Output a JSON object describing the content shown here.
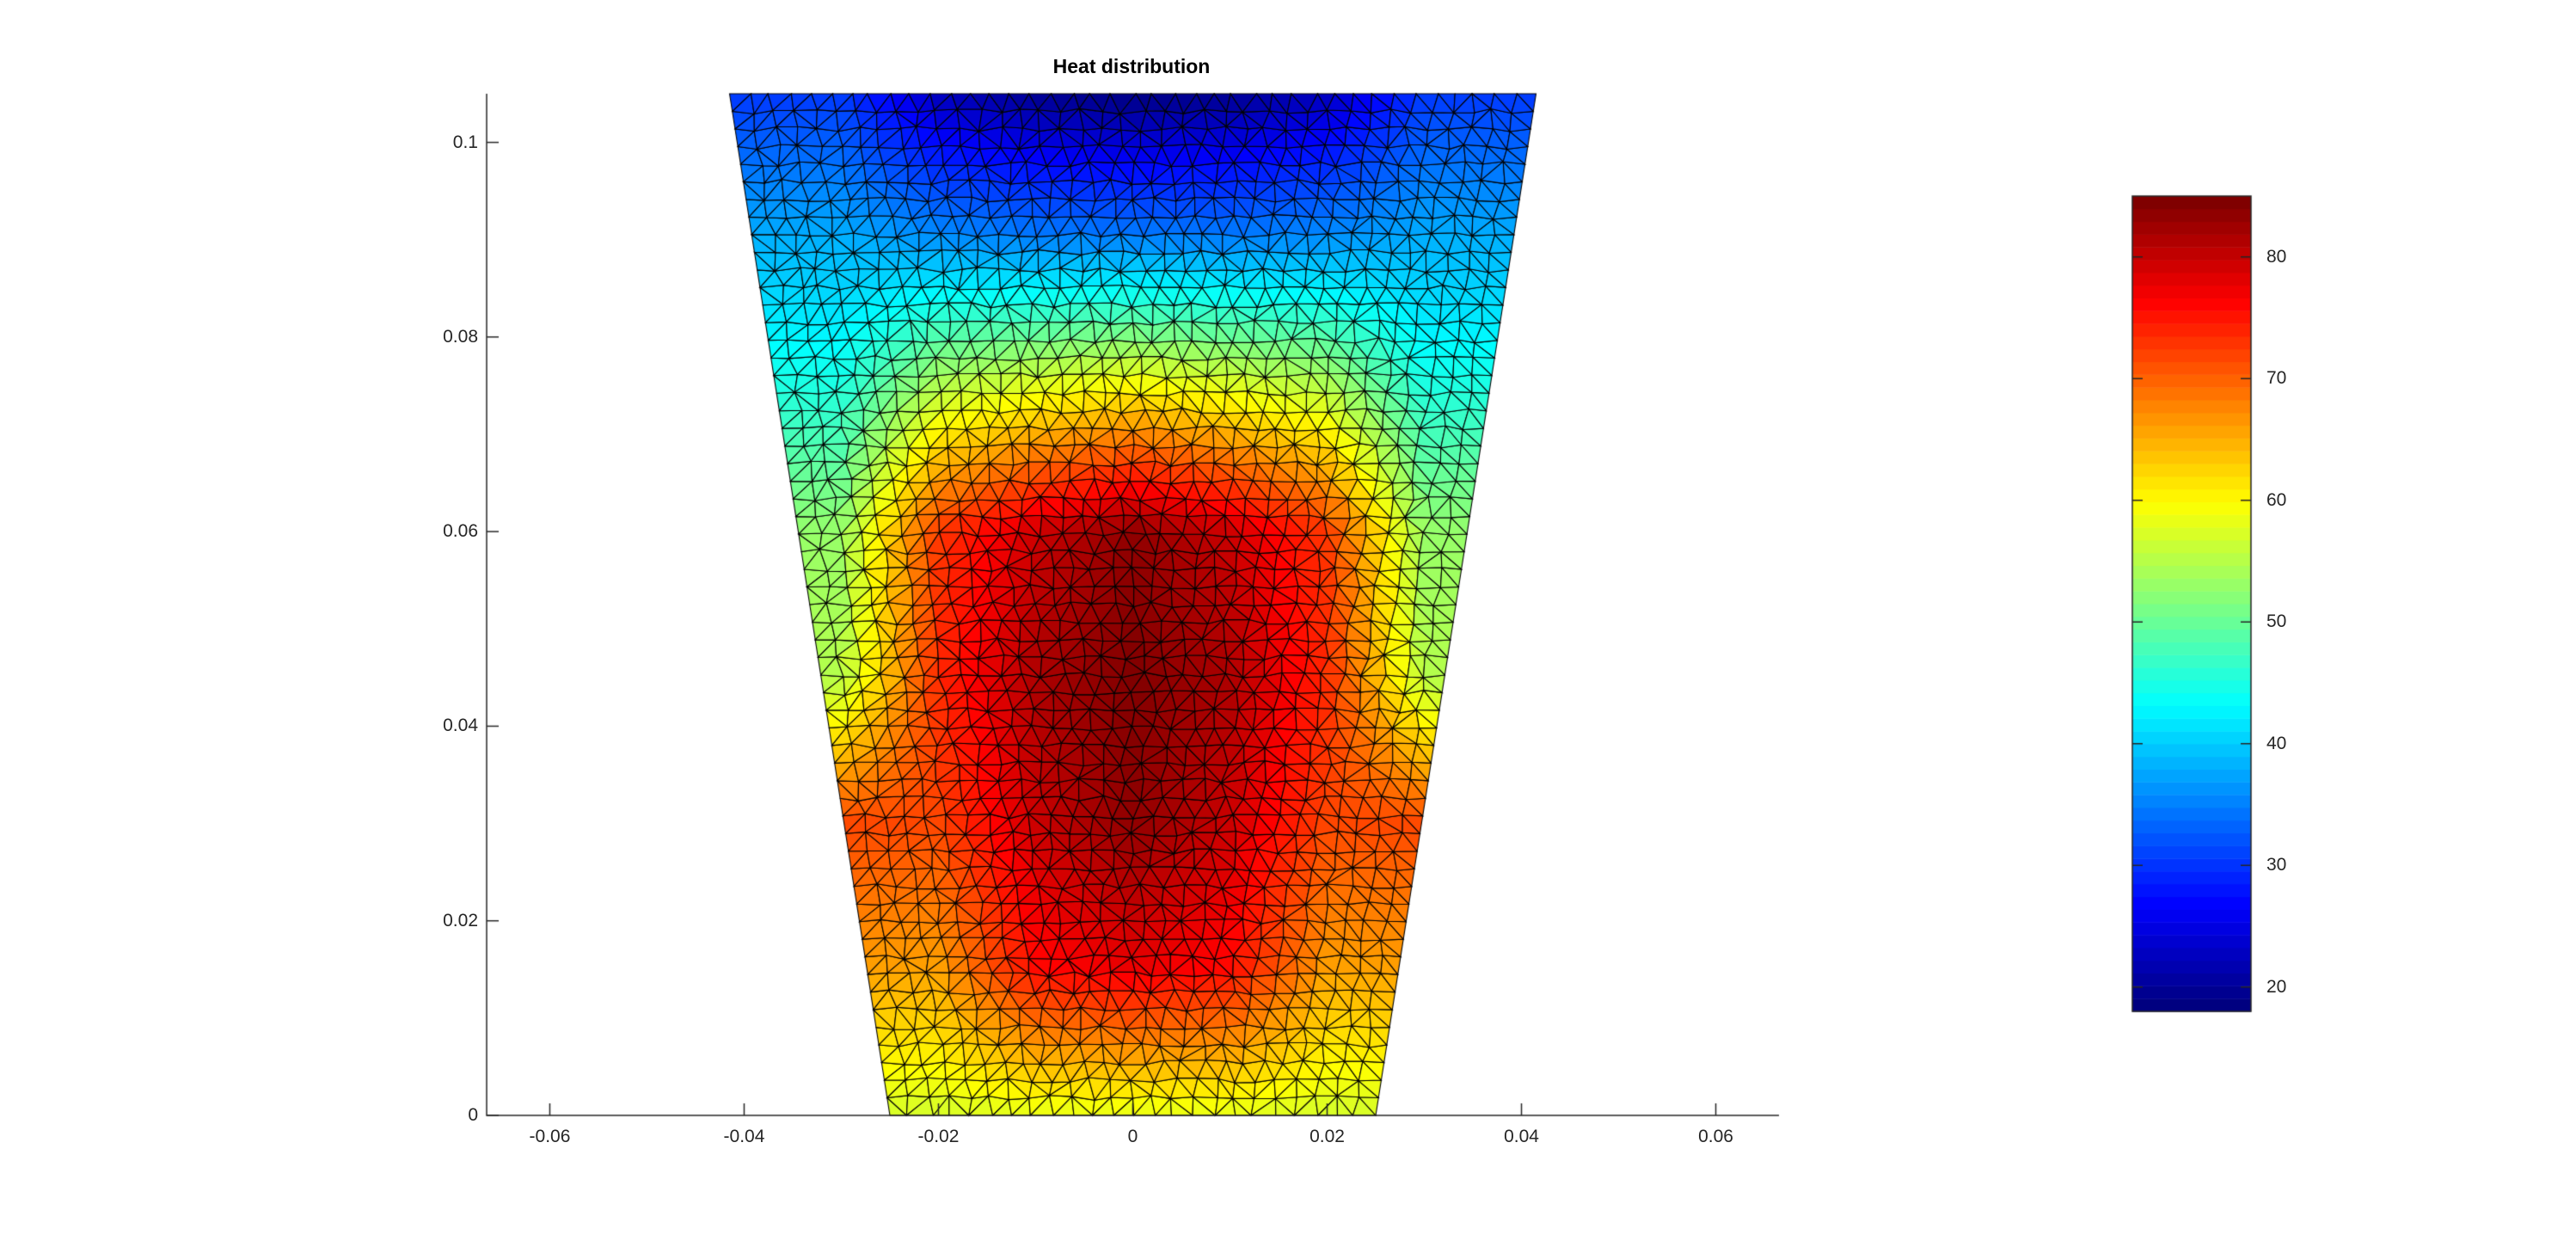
{
  "chart_data": {
    "type": "heatmap",
    "title": "Heat distribution",
    "xlabel": "",
    "ylabel": "",
    "xlim": [
      -0.0665,
      0.0665
    ],
    "ylim": [
      0,
      0.105
    ],
    "xticks": [
      -0.06,
      -0.04,
      -0.02,
      0,
      0.02,
      0.04,
      0.06
    ],
    "xtick_labels": [
      "-0.06",
      "-0.04",
      "-0.02",
      "0",
      "0.02",
      "0.04",
      "0.06"
    ],
    "yticks": [
      0,
      0.02,
      0.04,
      0.06,
      0.08,
      0.1
    ],
    "ytick_labels": [
      "0",
      "0.02",
      "0.04",
      "0.06",
      "0.08",
      "0.1"
    ],
    "grid": false,
    "domain": {
      "shape": "trapezoid",
      "bottom_x": [
        -0.025,
        0.025
      ],
      "top_x": [
        -0.0415,
        0.0415
      ],
      "y_range": [
        0,
        0.105
      ]
    },
    "mesh": "triangular, black edges",
    "colormap": "jet",
    "colorbar": {
      "position": "right",
      "clim": [
        18,
        85
      ],
      "ticks": [
        20,
        30,
        40,
        50,
        60,
        70,
        80
      ],
      "tick_labels": [
        "20",
        "30",
        "40",
        "50",
        "60",
        "70",
        "80"
      ]
    },
    "field_samples": {
      "x": [
        -0.03,
        -0.02,
        -0.01,
        0,
        0.01,
        0.02,
        0.03
      ],
      "y": [
        0,
        0.015,
        0.03,
        0.045,
        0.06,
        0.075,
        0.09,
        0.105
      ],
      "values": [
        [
          null,
          57,
          58,
          58,
          58,
          57,
          null
        ],
        [
          null,
          66,
          76,
          78,
          76,
          66,
          null
        ],
        [
          null,
          72,
          80,
          84,
          80,
          72,
          null
        ],
        [
          55,
          74,
          82,
          85,
          82,
          74,
          55
        ],
        [
          53,
          73,
          80,
          84,
          80,
          73,
          53
        ],
        [
          45,
          55,
          58,
          60,
          58,
          55,
          45
        ],
        [
          38,
          36,
          35,
          35,
          35,
          36,
          38
        ],
        [
          30,
          22,
          19,
          18,
          19,
          22,
          30
        ]
      ]
    }
  }
}
